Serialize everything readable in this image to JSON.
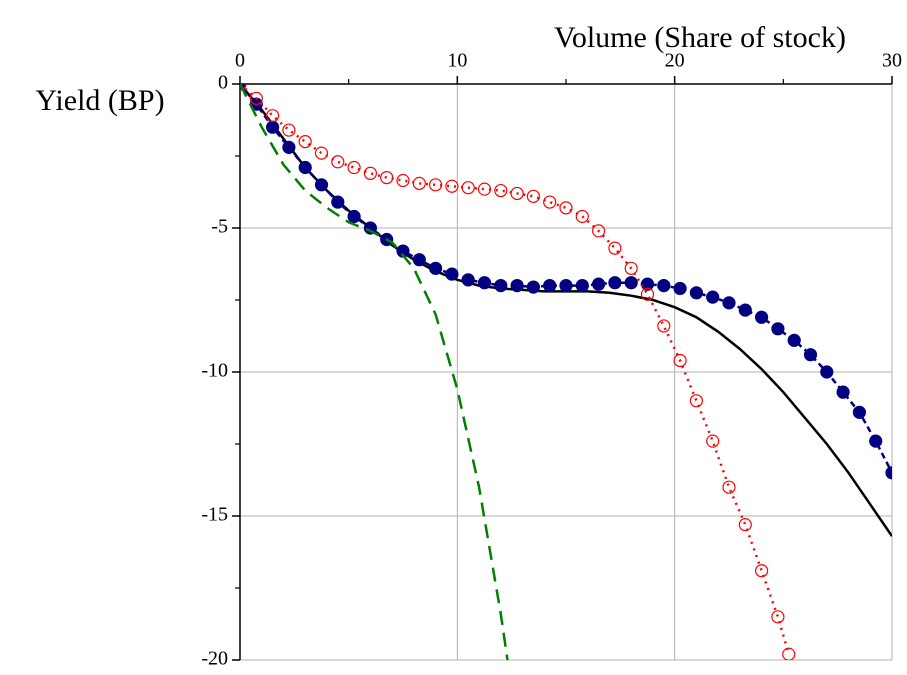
{
  "chart_data": {
    "type": "line",
    "x_label": "Volume (Share of stock)",
    "y_label": "Yield (BP)",
    "xlim": [
      0,
      30
    ],
    "xticks": [
      0,
      10,
      20,
      30
    ],
    "xminor_ticks": [
      5,
      15,
      25
    ],
    "ylim": [
      0,
      -20
    ],
    "yticks": [
      0,
      -5,
      -10,
      -15,
      -20
    ],
    "yminor_ticks": [
      -2.5,
      -7.5,
      -12.5,
      -17.5
    ],
    "grid": true,
    "series": [
      {
        "color": "#000000",
        "style": "solid",
        "marker": "none",
        "x": [
          0,
          1,
          2,
          3,
          4,
          5,
          6,
          7,
          8,
          9,
          10,
          11,
          12,
          13,
          14,
          15,
          16,
          17,
          18,
          19,
          20,
          21,
          22,
          23,
          24,
          25,
          26,
          27,
          28,
          29,
          30
        ],
        "values": [
          0,
          -0.9,
          -1.9,
          -2.9,
          -3.7,
          -4.4,
          -5.0,
          -5.6,
          -6.1,
          -6.5,
          -6.8,
          -7.0,
          -7.1,
          -7.15,
          -7.2,
          -7.2,
          -7.2,
          -7.25,
          -7.35,
          -7.5,
          -7.75,
          -8.1,
          -8.6,
          -9.2,
          -9.9,
          -10.7,
          -11.6,
          -12.5,
          -13.5,
          -14.6,
          -15.7
        ]
      },
      {
        "color": "#000080",
        "style": "dashed",
        "marker": "filled",
        "x": [
          0,
          0.75,
          1.5,
          2.25,
          3,
          3.75,
          4.5,
          5.25,
          6,
          6.75,
          7.5,
          8.25,
          9,
          9.75,
          10.5,
          11.25,
          12,
          12.75,
          13.5,
          14.25,
          15,
          15.75,
          16.5,
          17.25,
          18,
          18.75,
          19.5,
          20.25,
          21,
          21.75,
          22.5,
          23.25,
          24,
          24.75,
          25.5,
          26.25,
          27,
          27.75,
          28.5,
          29.25,
          30
        ],
        "values": [
          0,
          -0.7,
          -1.5,
          -2.2,
          -2.9,
          -3.5,
          -4.1,
          -4.6,
          -5.0,
          -5.4,
          -5.8,
          -6.1,
          -6.4,
          -6.6,
          -6.8,
          -6.9,
          -7.0,
          -7.0,
          -7.05,
          -7.0,
          -7.0,
          -7.0,
          -6.95,
          -6.9,
          -6.9,
          -6.95,
          -7.0,
          -7.1,
          -7.25,
          -7.4,
          -7.6,
          -7.85,
          -8.1,
          -8.5,
          -8.9,
          -9.4,
          -10.0,
          -10.7,
          -11.4,
          -12.4,
          -13.5
        ]
      },
      {
        "color": "#ff0000",
        "style": "dotted",
        "marker": "open",
        "x": [
          0,
          0.75,
          1.5,
          2.25,
          3,
          3.75,
          4.5,
          5.25,
          6,
          6.75,
          7.5,
          8.25,
          9,
          9.75,
          10.5,
          11.25,
          12,
          12.75,
          13.5,
          14.25,
          15,
          15.75,
          16.5,
          17.25,
          18,
          18.75,
          19.5,
          20.25,
          21,
          21.75,
          22.5,
          23.25,
          24,
          24.75,
          25.25
        ],
        "values": [
          0,
          -0.5,
          -1.1,
          -1.6,
          -2.0,
          -2.4,
          -2.7,
          -2.9,
          -3.1,
          -3.25,
          -3.35,
          -3.45,
          -3.5,
          -3.55,
          -3.6,
          -3.65,
          -3.7,
          -3.8,
          -3.9,
          -4.1,
          -4.3,
          -4.6,
          -5.1,
          -5.7,
          -6.4,
          -7.3,
          -8.4,
          -9.6,
          -11.0,
          -12.4,
          -14.0,
          -15.3,
          -16.9,
          -18.5,
          -19.8
        ]
      },
      {
        "color": "#008000",
        "style": "longdash",
        "marker": "none",
        "x": [
          0,
          1,
          2,
          3,
          4,
          5,
          6,
          7,
          8,
          9,
          10,
          11,
          12,
          12.5
        ],
        "values": [
          0,
          -1.5,
          -2.8,
          -3.7,
          -4.3,
          -4.8,
          -5.1,
          -5.5,
          -6.4,
          -8.0,
          -10.6,
          -14.0,
          -18.4,
          -21
        ]
      }
    ]
  }
}
